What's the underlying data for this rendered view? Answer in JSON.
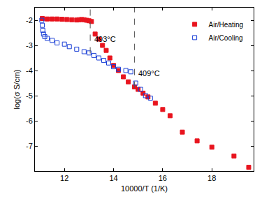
{
  "chart_data": {
    "type": "scatter",
    "x_label": "10000/T (1/K)",
    "y_label": "log(σ S/cm)",
    "xlim": [
      10.8,
      19.7
    ],
    "xticks": [
      12,
      14,
      16,
      18
    ],
    "ylim": [
      -8,
      -1.5
    ],
    "yticks": [
      -7,
      -6,
      -5,
      -4,
      -3,
      -2
    ],
    "grid": false,
    "legend": "upper right",
    "series": [
      {
        "name": "Air/Heating",
        "color": "#e8141e",
        "marker": "square",
        "x": [
          11.1,
          11.3,
          11.5,
          11.7,
          11.9,
          12.1,
          12.3,
          12.5,
          12.6,
          12.7,
          12.8,
          12.9,
          13.0,
          13.1,
          13.25,
          13.4,
          13.55,
          13.7,
          13.85,
          14.0,
          14.2,
          14.4,
          14.6,
          14.85,
          15.0,
          15.2,
          15.4,
          15.7,
          16.0,
          16.3,
          16.8,
          17.4,
          18.0,
          18.9,
          19.5
        ],
        "values": [
          -1.93,
          -1.95,
          -1.95,
          -1.95,
          -1.96,
          -1.97,
          -1.98,
          -1.99,
          -1.98,
          -1.97,
          -1.98,
          -2.0,
          -2.02,
          -2.05,
          -2.55,
          -2.75,
          -3.0,
          -3.2,
          -3.5,
          -3.8,
          -4.0,
          -4.25,
          -4.45,
          -4.65,
          -4.75,
          -4.9,
          -5.05,
          -5.3,
          -5.55,
          -5.8,
          -6.45,
          -6.8,
          -7.05,
          -7.4,
          -7.85
        ]
      },
      {
        "name": "Air/Cooling",
        "color": "#1a3fd6",
        "marker": "square-open",
        "x": [
          11.08,
          11.1,
          11.12,
          11.15,
          11.2,
          11.3,
          11.5,
          11.7,
          12.0,
          12.2,
          12.5,
          12.8,
          13.0,
          13.2,
          13.4,
          13.6,
          13.8,
          14.0,
          14.2,
          14.5,
          14.7,
          14.9,
          15.1,
          15.3,
          15.5
        ],
        "values": [
          -2.0,
          -2.2,
          -2.4,
          -2.55,
          -2.65,
          -2.72,
          -2.8,
          -2.9,
          -2.95,
          -3.05,
          -3.15,
          -3.25,
          -3.3,
          -3.4,
          -3.5,
          -3.6,
          -3.7,
          -3.85,
          -3.95,
          -4.0,
          -4.05,
          -4.5,
          -4.75,
          -5.0,
          -5.1
        ]
      }
    ],
    "annotations": [
      {
        "text": "493°C",
        "x": 13.05,
        "line_style": "dashed"
      },
      {
        "text": "409°C",
        "x": 14.85,
        "line_style": "dashed"
      }
    ]
  }
}
